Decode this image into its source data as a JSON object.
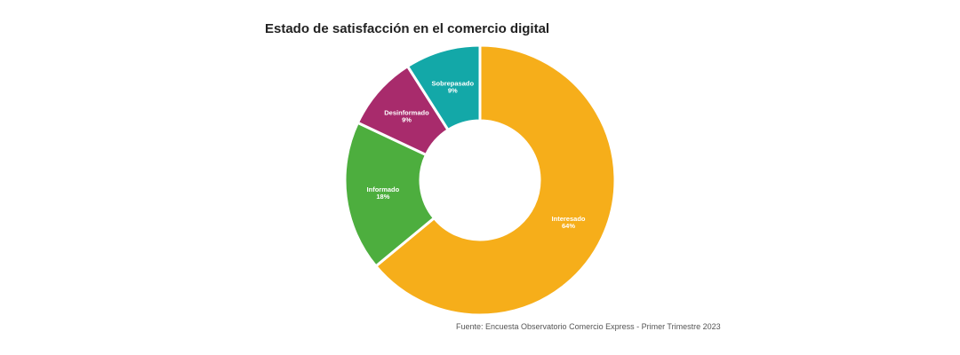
{
  "chart_data": {
    "type": "pie",
    "title": "Estado de satisfacción en el comercio digital",
    "source": "Fuente: Encuesta Observatorio Comercio Express - Primer Trimestre 2023",
    "slices": [
      {
        "label": "Interesado",
        "value": 64,
        "value_label": "64%",
        "color": "#F6AE1A"
      },
      {
        "label": "Informado",
        "value": 18,
        "value_label": "18%",
        "color": "#4DAE3E"
      },
      {
        "label": "Desinformado",
        "value": 9,
        "value_label": "9%",
        "color": "#A82B6C"
      },
      {
        "label": "Sobrepasado",
        "value": 9,
        "value_label": "9%",
        "color": "#13A8A8"
      }
    ]
  }
}
